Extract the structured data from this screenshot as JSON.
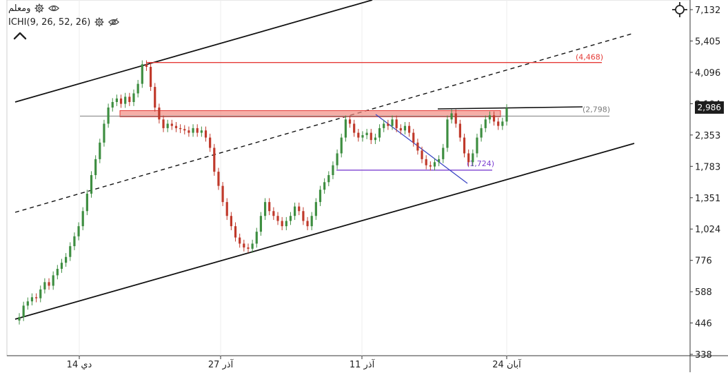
{
  "legend": {
    "symbol_label": "ومعلم",
    "indicator_label": "ICHI(9, 26, 52, 26)"
  },
  "icons": {
    "settings": "gear-icon",
    "visibility": "eye-icon",
    "hidden": "eye-off-icon",
    "collapse": "chevron-up-icon",
    "crosshair": "crosshair-icon"
  },
  "colors": {
    "up_candle": "#3e8e41",
    "down_candle": "#c0392b",
    "resistance": "#e53935",
    "support_purple": "#7b3fd1",
    "trendline_blue": "#3b46c4",
    "zone_fill": "#f28b82",
    "price_tag_bg": "#1e1e1e"
  },
  "current_price": "2,986",
  "chart_data": {
    "type": "candlestick",
    "y_scale": "log",
    "ylim": [
      338,
      7132
    ],
    "y_ticks": [
      "7,132",
      "5,405",
      "4,096",
      "3,104",
      "2,353",
      "1,783",
      "1,351",
      "1,024",
      "776",
      "588",
      "446",
      "338"
    ],
    "x_ticks": [
      "14 دي",
      "27 آذر",
      "11 آذر",
      "24 آبان"
    ],
    "price_labels": [
      {
        "text": "(4,468)",
        "value": 4468
      },
      {
        "text": "(2,798)",
        "value": 2798
      },
      {
        "text": "(1,724)",
        "value": 1724
      }
    ],
    "series_close": [
      470,
      520,
      540,
      560,
      555,
      600,
      640,
      620,
      680,
      720,
      760,
      800,
      880,
      960,
      1050,
      1200,
      1400,
      1650,
      1900,
      2200,
      2600,
      3000,
      3150,
      3250,
      3100,
      3300,
      3150,
      3400,
      3700,
      4400,
      4300,
      3600,
      3000,
      2700,
      2500,
      2600,
      2550,
      2500,
      2480,
      2450,
      2400,
      2500,
      2400,
      2450,
      2300,
      2100,
      1700,
      1500,
      1300,
      1150,
      1050,
      950,
      900,
      870,
      860,
      900,
      1000,
      1150,
      1300,
      1200,
      1150,
      1100,
      1050,
      1100,
      1150,
      1250,
      1200,
      1100,
      1050,
      1150,
      1300,
      1450,
      1550,
      1650,
      1800,
      2000,
      2300,
      2700,
      2600,
      2400,
      2300,
      2350,
      2400,
      2250,
      2300,
      2500,
      2600,
      2550,
      2700,
      2500,
      2450,
      2550,
      2400,
      2200,
      2050,
      1900,
      1800,
      1780,
      1850,
      1900,
      2100,
      2700,
      2850,
      2600,
      2300,
      2000,
      1850,
      2000,
      2300,
      2500,
      2700,
      2800,
      2650,
      2550,
      2650,
      2986
    ],
    "horizontal_levels": [
      4468,
      2798,
      1724
    ],
    "channel": "ascending parallel channel with dashed midline"
  }
}
